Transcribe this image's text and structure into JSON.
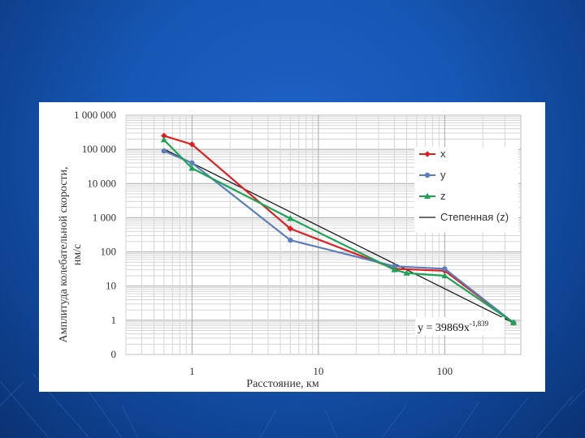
{
  "chart_data": {
    "type": "line",
    "x_scale": "log",
    "y_scale": "log",
    "xlabel": "Расстояние, км",
    "ylabel_line1": "Амплитуда колебательной скорости,",
    "ylabel_line2": "нм/с",
    "xlim": [
      0.3,
      400
    ],
    "ylim": [
      0.1,
      1000000
    ],
    "x_tick_labels": [
      {
        "value": 1,
        "label": "1"
      },
      {
        "value": 10,
        "label": "10"
      },
      {
        "value": 100,
        "label": "100"
      }
    ],
    "y_tick_labels": [
      {
        "value": 0.1,
        "label": "0"
      },
      {
        "value": 1,
        "label": "1"
      },
      {
        "value": 10,
        "label": "10"
      },
      {
        "value": 100,
        "label": "100"
      },
      {
        "value": 1000,
        "label": "1 000"
      },
      {
        "value": 10000,
        "label": "10 000"
      },
      {
        "value": 100000,
        "label": "100 000"
      },
      {
        "value": 1000000,
        "label": "1 000 000"
      }
    ],
    "grid": true,
    "legend_position": "right",
    "series": [
      {
        "name": "x",
        "color": "#e02020",
        "marker": "diamond",
        "points": [
          [
            0.6,
            250000
          ],
          [
            1.0,
            140000
          ],
          [
            6.0,
            480
          ],
          [
            40,
            32
          ],
          [
            100,
            28
          ],
          [
            350,
            0.85
          ]
        ]
      },
      {
        "name": "y",
        "color": "#5b7fbd",
        "marker": "circle",
        "points": [
          [
            0.6,
            90000
          ],
          [
            1.0,
            40000
          ],
          [
            6.0,
            220
          ],
          [
            40,
            38
          ],
          [
            100,
            32
          ],
          [
            350,
            0.85
          ]
        ]
      },
      {
        "name": "z",
        "color": "#1aa552",
        "marker": "triangle",
        "points": [
          [
            0.6,
            190000
          ],
          [
            1.0,
            28000
          ],
          [
            6.0,
            950
          ],
          [
            40,
            30
          ],
          [
            50,
            24
          ],
          [
            100,
            20
          ],
          [
            350,
            0.85
          ]
        ]
      }
    ],
    "trendline": {
      "name": "Степенная (z)",
      "color": "#111111",
      "coefficient": 39869,
      "exponent": -1.839,
      "x_range": [
        0.6,
        350
      ],
      "equation_prefix": "y = 39869x",
      "equation_exponent": "-1,839"
    }
  }
}
